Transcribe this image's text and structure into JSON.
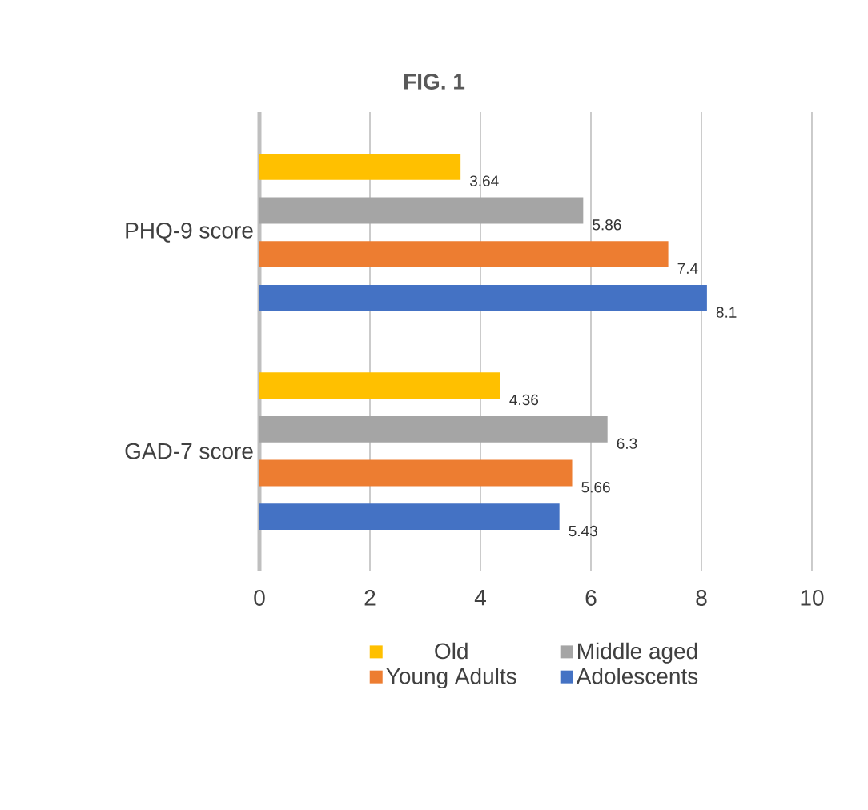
{
  "chart_data": {
    "type": "bar",
    "orientation": "horizontal",
    "title": "FIG. 1",
    "categories": [
      "PHQ-9 score",
      "GAD-7 score"
    ],
    "series": [
      {
        "name": "Old",
        "color": "#ffc000",
        "values": [
          3.64,
          4.36
        ]
      },
      {
        "name": "Middle aged",
        "color": "#a5a5a5",
        "values": [
          5.86,
          6.3
        ]
      },
      {
        "name": "Young Adults",
        "color": "#ed7d31",
        "values": [
          7.4,
          5.66
        ]
      },
      {
        "name": "Adolescents",
        "color": "#4472c4",
        "values": [
          8.1,
          5.43
        ]
      }
    ],
    "xlim": [
      0,
      10
    ],
    "xticks": [
      0,
      2,
      4,
      6,
      8,
      10
    ],
    "grid": "x",
    "legend": "bottom",
    "data_labels": true
  }
}
